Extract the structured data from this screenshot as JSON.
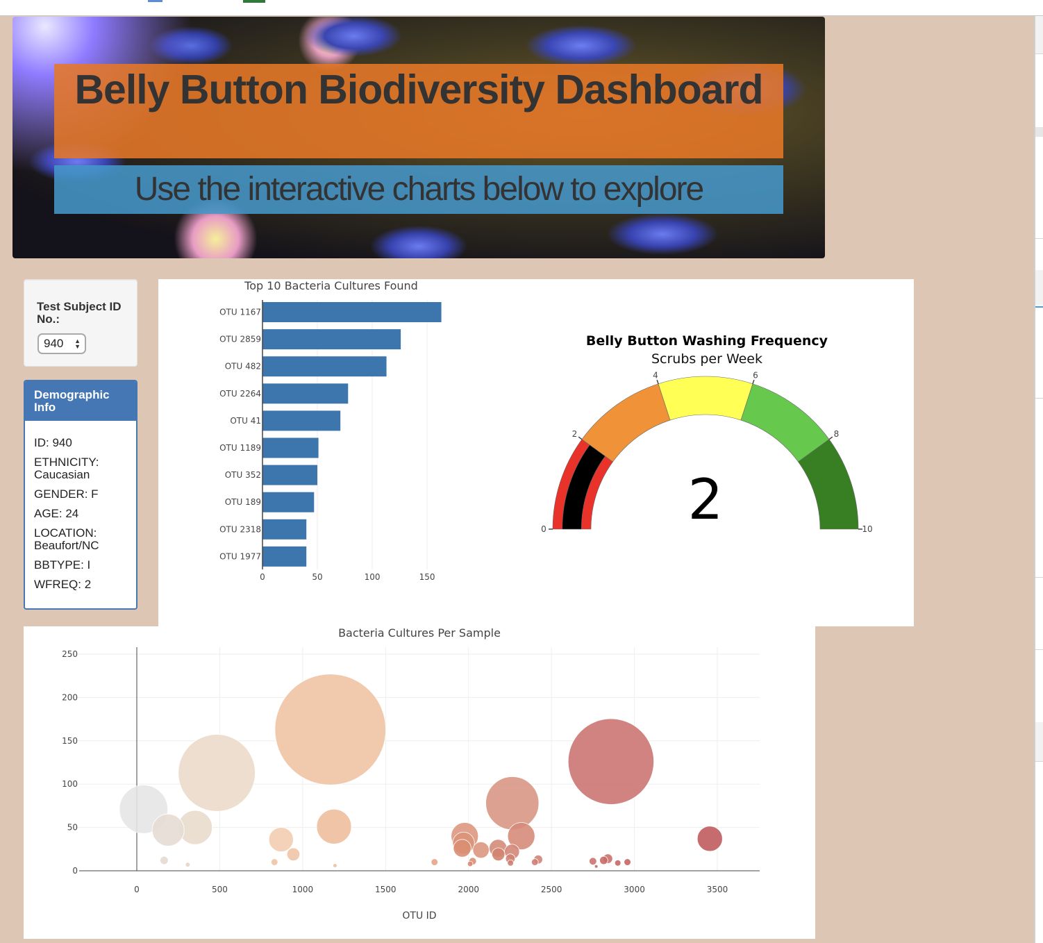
{
  "header": {
    "title": "Belly Button Biodiversity Dashboard",
    "subtitle": "Use the interactive charts below to explore"
  },
  "selector": {
    "label": "Test Subject ID No.:",
    "selected": "940"
  },
  "demographic": {
    "heading": "Demographic Info",
    "rows": [
      "ID: 940",
      "ETHNICITY: Caucasian",
      "GENDER: F",
      "AGE: 24",
      "LOCATION: Beaufort/NC",
      "BBTYPE: I",
      "WFREQ: 2"
    ]
  },
  "colors": {
    "background": "#dec6b5",
    "bar": "#3d76ad",
    "panel_header": "#4677b5",
    "title_overlay": "#e67828",
    "subtitle_overlay": "#4696c8"
  },
  "chart_data": [
    {
      "type": "bar",
      "orientation": "horizontal",
      "title": "Top 10 Bacteria Cultures Found",
      "categories": [
        "OTU 1167",
        "OTU 2859",
        "OTU 482",
        "OTU 2264",
        "OTU 41",
        "OTU 1189",
        "OTU 352",
        "OTU 189",
        "OTU 2318",
        "OTU 1977"
      ],
      "values": [
        163,
        126,
        113,
        78,
        71,
        51,
        50,
        47,
        40,
        40
      ],
      "xticks": [
        0,
        50,
        100,
        150
      ],
      "xlim": [
        0,
        165
      ],
      "color": "#3d76ad"
    },
    {
      "type": "gauge",
      "title": "Belly Button Washing Frequency",
      "subtitle": "Scrubs per Week",
      "value": 2,
      "range": [
        0,
        10
      ],
      "ticks": [
        0,
        2,
        4,
        6,
        8,
        10
      ],
      "steps": [
        {
          "range": [
            0,
            2
          ],
          "color": "#e8322a"
        },
        {
          "range": [
            2,
            4
          ],
          "color": "#f09238"
        },
        {
          "range": [
            4,
            6
          ],
          "color": "#ffff55"
        },
        {
          "range": [
            6,
            8
          ],
          "color": "#66c94e"
        },
        {
          "range": [
            8,
            10
          ],
          "color": "#387f24"
        }
      ],
      "bar_color": "#000000"
    },
    {
      "type": "scatter",
      "mode": "bubble",
      "title": "Bacteria Cultures Per Sample",
      "xlabel": "OTU ID",
      "ylabel": "",
      "xticks": [
        0,
        500,
        1000,
        1500,
        2000,
        2500,
        3000,
        3500
      ],
      "yticks": [
        0,
        50,
        100,
        150,
        200,
        250
      ],
      "xlim": [
        -370,
        3750
      ],
      "ylim": [
        -10,
        258
      ],
      "grid": true,
      "points": [
        {
          "x": 41,
          "y": 71,
          "color": "#e5e5e5"
        },
        {
          "x": 189,
          "y": 47,
          "color": "#e6ddd4"
        },
        {
          "x": 352,
          "y": 50,
          "color": "#e9dccd"
        },
        {
          "x": 482,
          "y": 113,
          "color": "#ecdacb"
        },
        {
          "x": 165,
          "y": 12,
          "color": "#e4dad2"
        },
        {
          "x": 307,
          "y": 7,
          "color": "#e8d6c8"
        },
        {
          "x": 870,
          "y": 36,
          "color": "#f2cdb1"
        },
        {
          "x": 944,
          "y": 19,
          "color": "#f0c5a6"
        },
        {
          "x": 830,
          "y": 10,
          "color": "#efc4a4"
        },
        {
          "x": 1167,
          "y": 163,
          "color": "#f0c4a4"
        },
        {
          "x": 1189,
          "y": 51,
          "color": "#eebf9d"
        },
        {
          "x": 1195,
          "y": 6,
          "color": "#eec0a0"
        },
        {
          "x": 1795,
          "y": 10,
          "color": "#e5a486"
        },
        {
          "x": 1977,
          "y": 40,
          "color": "#dd9880"
        },
        {
          "x": 1970,
          "y": 32,
          "color": "#dc9478"
        },
        {
          "x": 1962,
          "y": 26,
          "color": "#d98e72"
        },
        {
          "x": 2075,
          "y": 24,
          "color": "#dc977f"
        },
        {
          "x": 2025,
          "y": 11,
          "color": "#d98e74"
        },
        {
          "x": 2010,
          "y": 8,
          "color": "#d88a70"
        },
        {
          "x": 2264,
          "y": 78,
          "color": "#d99786"
        },
        {
          "x": 2318,
          "y": 40,
          "color": "#d68b79"
        },
        {
          "x": 2178,
          "y": 26,
          "color": "#d48b78"
        },
        {
          "x": 2180,
          "y": 19,
          "color": "#d28470"
        },
        {
          "x": 2262,
          "y": 22,
          "color": "#d4877a"
        },
        {
          "x": 2252,
          "y": 14,
          "color": "#d18373"
        },
        {
          "x": 2253,
          "y": 9,
          "color": "#cf7f6f"
        },
        {
          "x": 2400,
          "y": 10,
          "color": "#d07f72"
        },
        {
          "x": 2420,
          "y": 13,
          "color": "#d2857a"
        },
        {
          "x": 2859,
          "y": 126,
          "color": "#cc7673"
        },
        {
          "x": 2750,
          "y": 11,
          "color": "#cc7470"
        },
        {
          "x": 2770,
          "y": 5,
          "color": "#c86a66"
        },
        {
          "x": 2815,
          "y": 12,
          "color": "#c86c69"
        },
        {
          "x": 2840,
          "y": 14,
          "color": "#cb716e"
        },
        {
          "x": 2900,
          "y": 9,
          "color": "#c76866"
        },
        {
          "x": 2958,
          "y": 10,
          "color": "#c66664"
        },
        {
          "x": 3455,
          "y": 37,
          "color": "#c05c5e"
        }
      ]
    }
  ]
}
